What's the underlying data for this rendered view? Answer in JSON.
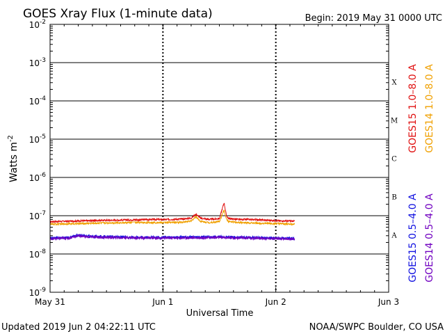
{
  "chart_data": {
    "type": "line",
    "title": "GOES Xray Flux (1-minute data)",
    "begin_label": "Begin:  2019 May 31 0000 UTC",
    "xlabel": "Universal Time",
    "ylabel": "Watts m",
    "ylabel_superscript": "-2",
    "x_ticks": [
      "May 31",
      "Jun 1",
      "Jun 2",
      "Jun 3"
    ],
    "x_range": [
      "2019-05-31 00:00",
      "2019-06-03 00:00"
    ],
    "y_scale": "log",
    "ylim": [
      1e-09,
      0.01
    ],
    "y_ticks": [
      {
        "base": "10",
        "exp": "-2"
      },
      {
        "base": "10",
        "exp": "-3"
      },
      {
        "base": "10",
        "exp": "-4"
      },
      {
        "base": "10",
        "exp": "-5"
      },
      {
        "base": "10",
        "exp": "-6"
      },
      {
        "base": "10",
        "exp": "-7"
      },
      {
        "base": "10",
        "exp": "-8"
      },
      {
        "base": "10",
        "exp": "-9"
      }
    ],
    "flare_classes": [
      "X",
      "M",
      "C",
      "B",
      "A"
    ],
    "grid": true,
    "series": [
      {
        "name": "GOES15 1.0–8.0 A",
        "color": "#e01010",
        "x_hours": [
          0,
          6,
          12,
          18,
          22,
          24,
          28,
          30,
          31,
          32,
          34,
          36,
          37,
          37.5,
          38,
          40,
          44,
          48,
          52
        ],
        "values": [
          7e-08,
          7.3e-08,
          7.6e-08,
          7.8e-08,
          8e-08,
          7.9e-08,
          8.2e-08,
          8.6e-08,
          1.1e-07,
          8.6e-08,
          8e-08,
          8.4e-08,
          2.2e-07,
          1e-07,
          8.4e-08,
          8e-08,
          7.9e-08,
          7.4e-08,
          7.2e-08
        ]
      },
      {
        "name": "GOES14 1.0–8.0 A",
        "color": "#f0a000",
        "x_hours": [
          0,
          6,
          12,
          18,
          22,
          24,
          28,
          30,
          31,
          32,
          34,
          36,
          37,
          37.5,
          38,
          40,
          44,
          48,
          52
        ],
        "values": [
          6e-08,
          6.2e-08,
          6.5e-08,
          6.6e-08,
          6.6e-08,
          6.6e-08,
          6.8e-08,
          7.2e-08,
          9.5e-08,
          7.1e-08,
          6.6e-08,
          7e-08,
          1.4e-07,
          8.2e-08,
          7e-08,
          6.6e-08,
          6.4e-08,
          6.2e-08,
          6e-08
        ]
      },
      {
        "name": "GOES15 0.5–4.0 A",
        "color": "#1010e0",
        "x_hours": [
          0,
          4,
          6,
          8,
          12,
          18,
          24,
          30,
          36,
          42,
          48,
          52
        ],
        "values": [
          2.6e-08,
          2.7e-08,
          3.1e-08,
          2.9e-08,
          2.8e-08,
          2.75e-08,
          2.7e-08,
          2.75e-08,
          2.8e-08,
          2.7e-08,
          2.6e-08,
          2.5e-08
        ]
      },
      {
        "name": "GOES14 0.5–4.0 A",
        "color": "#7000c0",
        "x_hours": [
          0,
          4,
          6,
          8,
          12,
          18,
          24,
          30,
          36,
          42,
          48,
          52
        ],
        "values": [
          2.5e-08,
          2.6e-08,
          3e-08,
          2.8e-08,
          2.7e-08,
          2.65e-08,
          2.6e-08,
          2.65e-08,
          2.7e-08,
          2.6e-08,
          2.55e-08,
          2.45e-08
        ]
      }
    ]
  },
  "footer": {
    "updated": "Updated 2019 Jun  2 04:22:11 UTC",
    "credit": "NOAA/SWPC Boulder, CO USA"
  }
}
